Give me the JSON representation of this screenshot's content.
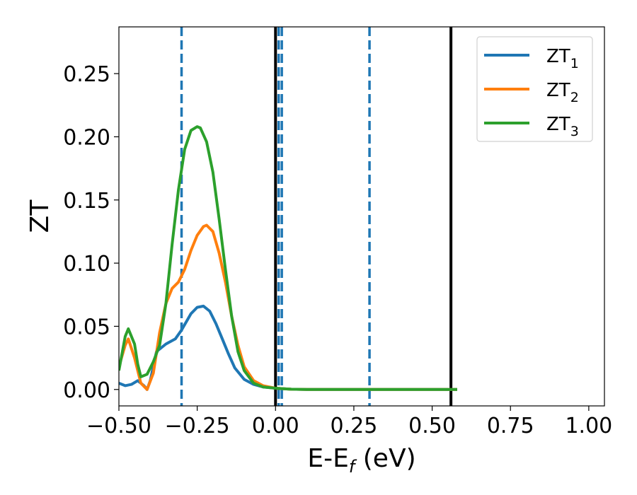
{
  "chart_data": {
    "type": "line",
    "xlabel": "E-E",
    "xlabel_sub": "f",
    "xlabel_unit": " (eV)",
    "ylabel": "ZT",
    "xlim": [
      -0.5,
      1.05
    ],
    "ylim": [
      -0.013,
      0.287
    ],
    "xticks": [
      -0.5,
      -0.25,
      0.0,
      0.25,
      0.5,
      0.75,
      1.0
    ],
    "xtick_labels": [
      "−0.50",
      "−0.25",
      "0.00",
      "0.25",
      "0.50",
      "0.75",
      "1.00"
    ],
    "yticks": [
      0.0,
      0.05,
      0.1,
      0.15,
      0.2,
      0.25
    ],
    "ytick_labels": [
      "0.00",
      "0.05",
      "0.10",
      "0.15",
      "0.20",
      "0.25"
    ],
    "grid": false,
    "legend_position": "top-right",
    "series": [
      {
        "name": "ZT",
        "name_sub": "1",
        "color": "#1f77b4",
        "x": [
          -0.5,
          -0.48,
          -0.46,
          -0.44,
          -0.42,
          -0.41,
          -0.4,
          -0.38,
          -0.35,
          -0.32,
          -0.3,
          -0.27,
          -0.25,
          -0.23,
          -0.21,
          -0.19,
          -0.17,
          -0.15,
          -0.13,
          -0.1,
          -0.07,
          -0.04,
          0.0,
          0.03,
          0.05,
          0.1,
          0.2,
          0.3,
          0.4,
          0.5,
          0.58
        ],
        "y": [
          0.005,
          0.003,
          0.004,
          0.007,
          0.003,
          0.0,
          0.007,
          0.03,
          0.036,
          0.04,
          0.047,
          0.06,
          0.065,
          0.066,
          0.062,
          0.052,
          0.04,
          0.028,
          0.017,
          0.008,
          0.004,
          0.002,
          0.001,
          0.0005,
          0.0002,
          0.0,
          0.0,
          0.0,
          0.0,
          0.0,
          0.0
        ]
      },
      {
        "name": "ZT",
        "name_sub": "2",
        "color": "#ff7f0e",
        "x": [
          -0.5,
          -0.48,
          -0.47,
          -0.45,
          -0.43,
          -0.41,
          -0.39,
          -0.37,
          -0.35,
          -0.33,
          -0.31,
          -0.29,
          -0.27,
          -0.25,
          -0.23,
          -0.22,
          -0.2,
          -0.18,
          -0.16,
          -0.14,
          -0.12,
          -0.1,
          -0.07,
          -0.04,
          0.0,
          0.03,
          0.05,
          0.1,
          0.2,
          0.3,
          0.4,
          0.5,
          0.58
        ],
        "y": [
          0.018,
          0.035,
          0.04,
          0.025,
          0.005,
          0.0,
          0.013,
          0.045,
          0.068,
          0.08,
          0.085,
          0.095,
          0.11,
          0.122,
          0.129,
          0.13,
          0.125,
          0.108,
          0.085,
          0.058,
          0.035,
          0.018,
          0.007,
          0.003,
          0.001,
          0.0005,
          0.0002,
          0.0,
          0.0,
          0.0,
          0.0,
          0.0,
          0.0
        ]
      },
      {
        "name": "ZT",
        "name_sub": "3",
        "color": "#2ca02c",
        "x": [
          -0.5,
          -0.48,
          -0.47,
          -0.45,
          -0.44,
          -0.43,
          -0.41,
          -0.39,
          -0.37,
          -0.35,
          -0.33,
          -0.31,
          -0.29,
          -0.27,
          -0.25,
          -0.24,
          -0.22,
          -0.2,
          -0.18,
          -0.16,
          -0.14,
          -0.12,
          -0.1,
          -0.07,
          -0.04,
          0.0,
          0.03,
          0.05,
          0.1,
          0.2,
          0.3,
          0.4,
          0.5,
          0.58
        ],
        "y": [
          0.015,
          0.042,
          0.048,
          0.036,
          0.02,
          0.01,
          0.012,
          0.022,
          0.035,
          0.068,
          0.115,
          0.158,
          0.19,
          0.205,
          0.208,
          0.207,
          0.196,
          0.172,
          0.135,
          0.095,
          0.058,
          0.03,
          0.015,
          0.005,
          0.002,
          0.001,
          0.0005,
          0.0002,
          0.0,
          0.0,
          0.0,
          0.0,
          0.0,
          0.0
        ]
      }
    ],
    "vlines": [
      {
        "x": -0.3,
        "style": "dashed",
        "color": "#1f77b4"
      },
      {
        "x": 0.01,
        "style": "dashed",
        "color": "#1f77b4"
      },
      {
        "x": 0.02,
        "style": "dashed",
        "color": "#1f77b4"
      },
      {
        "x": 0.3,
        "style": "dashed",
        "color": "#1f77b4"
      },
      {
        "x": 0.0,
        "style": "solid",
        "color": "#000000"
      },
      {
        "x": 0.56,
        "style": "solid",
        "color": "#000000"
      }
    ]
  }
}
